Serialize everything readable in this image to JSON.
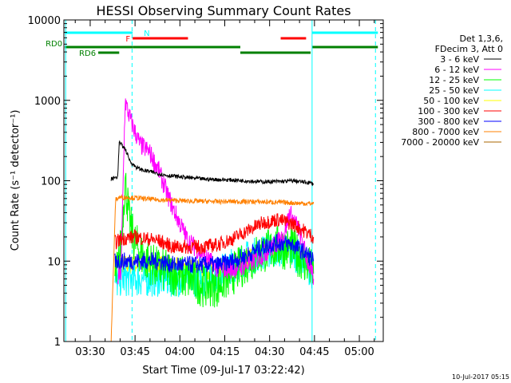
{
  "chart_data": {
    "type": "line",
    "title": "HESSI Observing Summary Count Rates",
    "xlabel": "Start Time (09-Jul-17 03:22:42)",
    "ylabel": "Count Rate (s⁻¹ detector⁻¹)",
    "x_ticks": [
      "03:30",
      "03:45",
      "04:00",
      "04:15",
      "04:30",
      "04:45",
      "05:00"
    ],
    "x_tick_minutes": [
      7.3,
      22.3,
      37.3,
      52.3,
      67.3,
      82.3,
      97.3
    ],
    "xlim_minutes": [
      -1.5,
      105.3
    ],
    "y_scale": "log",
    "y_ticks": [
      "1",
      "10",
      "100",
      "1000",
      "10000"
    ],
    "ylim": [
      1,
      10000
    ],
    "legend_header": [
      "Det 1,3,6,",
      "FDecim 3, Att 0"
    ],
    "series": [
      {
        "name": "3 - 6 keV",
        "color": "#000000",
        "x": [
          14.3,
          15.8,
          16.5,
          17.0,
          19.0,
          20.5,
          21.5,
          23,
          25,
          28,
          32,
          37,
          45,
          55,
          65,
          72,
          75,
          80,
          82
        ],
        "y": [
          105,
          110,
          112,
          300,
          250,
          180,
          160,
          145,
          135,
          128,
          118,
          112,
          105,
          102,
          97,
          98,
          100,
          95,
          92
        ]
      },
      {
        "name": "6 - 12 keV",
        "color": "#ff00ff",
        "x": [
          16.5,
          17.5,
          18.0,
          19.0,
          20.0,
          22,
          24,
          27,
          30,
          33,
          35,
          40,
          45,
          50,
          55,
          60,
          65,
          70,
          72,
          74,
          77,
          80,
          82
        ],
        "y": [
          6,
          7,
          30,
          1000,
          700,
          430,
          280,
          230,
          140,
          70,
          45,
          18,
          12,
          8,
          8,
          9,
          12,
          17,
          21,
          40,
          25,
          10,
          6
        ]
      },
      {
        "name": "12 - 25 keV",
        "color": "#00ff00",
        "x": [
          15.5,
          16.5,
          17.5,
          19.0,
          20.5,
          22,
          25,
          30,
          35,
          40,
          45,
          50,
          55,
          60,
          65,
          70,
          75,
          80,
          82
        ],
        "y": [
          6,
          8,
          15,
          100,
          30,
          18,
          11,
          8,
          7,
          6,
          5,
          5,
          7,
          10,
          13,
          15,
          14,
          9,
          7
        ]
      },
      {
        "name": "25 - 50 keV",
        "color": "#00ffff",
        "x": [
          15.5,
          17,
          19,
          22,
          25,
          30,
          35,
          40,
          45,
          50,
          55,
          60,
          65,
          70,
          75,
          80,
          82
        ],
        "y": [
          5,
          6,
          6,
          6,
          6,
          6,
          6,
          6,
          6,
          7,
          9,
          11,
          13,
          14,
          13,
          9,
          7
        ]
      },
      {
        "name": "50 - 100 keV",
        "color": "#ffff00",
        "x": [
          15.5,
          20,
          30,
          40,
          50,
          60,
          65,
          70,
          75,
          80,
          82
        ],
        "y": [
          9,
          9,
          9,
          8,
          8,
          11,
          13,
          15,
          14,
          10,
          9
        ]
      },
      {
        "name": "100 - 300 keV",
        "color": "#ff0000",
        "x": [
          15.5,
          18,
          22,
          26,
          30,
          35,
          40,
          45,
          50,
          55,
          60,
          65,
          70,
          75,
          78,
          82
        ],
        "y": [
          17,
          19,
          20,
          19,
          18,
          15,
          15,
          15,
          16,
          19,
          24,
          30,
          33,
          29,
          25,
          20
        ]
      },
      {
        "name": "300 - 800 keV",
        "color": "#0000ff",
        "x": [
          15.5,
          20,
          25,
          30,
          35,
          40,
          45,
          50,
          55,
          60,
          65,
          70,
          75,
          80,
          82
        ],
        "y": [
          10,
          10,
          10,
          10,
          9,
          9,
          9,
          9,
          10,
          12,
          15,
          17,
          16,
          12,
          10
        ]
      },
      {
        "name": "800 - 7000 keV",
        "color": "#ff8000",
        "x": [
          14.3,
          15.8,
          17,
          20,
          25,
          30,
          40,
          50,
          60,
          70,
          80,
          82
        ],
        "y": [
          1,
          58,
          62,
          62,
          60,
          58,
          56,
          55,
          55,
          54,
          52,
          52
        ]
      },
      {
        "name": "7000 - 20000 keV",
        "color": "#a86400",
        "x": [
          14.3,
          15.8,
          17,
          20,
          30,
          40,
          50,
          60,
          70,
          80,
          82
        ],
        "y": [
          1,
          1,
          1,
          1,
          1,
          1,
          1,
          1,
          1,
          1,
          1
        ]
      }
    ],
    "grid": false,
    "legend_placement": "right, outside plot"
  },
  "flags": {
    "row1": [
      {
        "label": "N",
        "color": "#00ffff",
        "x0": -1.2,
        "x1": 21.5
      },
      {
        "label": "",
        "color": "#00ffff",
        "x0": 81.5,
        "x1": 103.5
      }
    ],
    "row2": [
      {
        "label": "F",
        "color": "#ff0000",
        "x0": 21.5,
        "x1": 40.0
      },
      {
        "label": "",
        "color": "#ff0000",
        "x0": 71.0,
        "x1": 79.5
      }
    ],
    "row3": [
      {
        "label": "RD0",
        "color": "#008000",
        "x0": -1.2,
        "x1": 21.5
      },
      {
        "label": "",
        "color": "#008000",
        "x0": 21.5,
        "x1": 57.5
      },
      {
        "label": "",
        "color": "#008000",
        "x0": 81.5,
        "x1": 103.5
      }
    ],
    "row4": [
      {
        "label": "RD6",
        "color": "#008000",
        "x0": 10.0,
        "x1": 17.0
      },
      {
        "label": "",
        "color": "#008000",
        "x0": 57.5,
        "x1": 81.0
      }
    ]
  },
  "vlines": [
    {
      "x": -0.9,
      "style": "solid",
      "color": "#00ffff"
    },
    {
      "x": 21.3,
      "style": "dashed",
      "color": "#00ffff"
    },
    {
      "x": 81.5,
      "style": "solid",
      "color": "#00ffff"
    },
    {
      "x": 102.7,
      "style": "dashed",
      "color": "#00ffff"
    }
  ],
  "footer_date": "10-Jul-2017 05:15"
}
